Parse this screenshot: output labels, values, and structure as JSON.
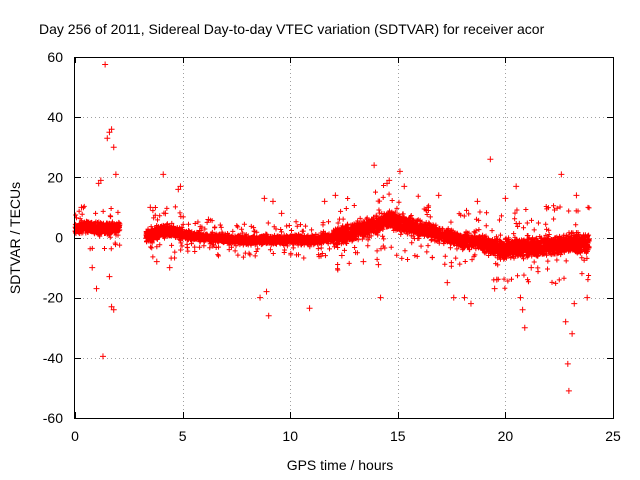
{
  "chart_data": {
    "type": "scatter",
    "title": "Day 256 of 2011, Sidereal Day-to-day VTEC variation (SDTVAR) for receiver acor",
    "xlabel": "GPS time / hours",
    "ylabel": "SDTVAR / TECUs",
    "xlim": [
      0,
      25
    ],
    "ylim": [
      -60,
      60
    ],
    "xticks": [
      0,
      5,
      10,
      15,
      20,
      25
    ],
    "yticks": [
      -60,
      -40,
      -20,
      0,
      20,
      40,
      60
    ],
    "grid": true,
    "marker": "+",
    "color": "#ff0000",
    "trend": [
      [
        0,
        3
      ],
      [
        0.5,
        3.5
      ],
      [
        1,
        3
      ],
      [
        1.5,
        3
      ],
      [
        2,
        3.5
      ],
      [
        3.3,
        0.5
      ],
      [
        4,
        2
      ],
      [
        4.5,
        2
      ],
      [
        5,
        1
      ],
      [
        6,
        0
      ],
      [
        7,
        -0.5
      ],
      [
        8,
        -1
      ],
      [
        9,
        -1
      ],
      [
        10,
        -0.5
      ],
      [
        11,
        -1
      ],
      [
        12,
        0
      ],
      [
        13,
        2
      ],
      [
        14,
        4
      ],
      [
        14.5,
        6
      ],
      [
        15,
        5
      ],
      [
        16,
        3
      ],
      [
        17,
        1
      ],
      [
        18,
        -1
      ],
      [
        19,
        -2
      ],
      [
        20,
        -4
      ],
      [
        21,
        -3
      ],
      [
        22,
        -3
      ],
      [
        23,
        -2
      ],
      [
        23.9,
        -2
      ]
    ],
    "outliers": [
      [
        1.4,
        57.5
      ],
      [
        1.6,
        35
      ],
      [
        1.7,
        36
      ],
      [
        1.5,
        33
      ],
      [
        1.8,
        30
      ],
      [
        1.2,
        19
      ],
      [
        1.1,
        18
      ],
      [
        1.9,
        21
      ],
      [
        1.3,
        -39.5
      ],
      [
        1.7,
        -23
      ],
      [
        1.8,
        -24
      ],
      [
        1.0,
        -17
      ],
      [
        0.8,
        -10
      ],
      [
        1.6,
        -13
      ],
      [
        0.3,
        10
      ],
      [
        4.1,
        21
      ],
      [
        4.8,
        16
      ],
      [
        4.9,
        17
      ],
      [
        3.5,
        10
      ],
      [
        4.2,
        8
      ],
      [
        3.8,
        -8
      ],
      [
        4.4,
        -10
      ],
      [
        6.2,
        6
      ],
      [
        8.6,
        -20
      ],
      [
        8.8,
        13
      ],
      [
        8.9,
        -18
      ],
      [
        9.0,
        -26
      ],
      [
        9.2,
        12
      ],
      [
        9.6,
        8
      ],
      [
        10.9,
        -23.5
      ],
      [
        11.6,
        12
      ],
      [
        12.1,
        14
      ],
      [
        12.4,
        -6
      ],
      [
        13.4,
        -8
      ],
      [
        13.9,
        24
      ],
      [
        14.2,
        -20
      ],
      [
        14.1,
        -9
      ],
      [
        14.6,
        19
      ],
      [
        14.5,
        18
      ],
      [
        15.1,
        22
      ],
      [
        15.3,
        17
      ],
      [
        16.4,
        10
      ],
      [
        16.9,
        14
      ],
      [
        17.3,
        -15
      ],
      [
        17.6,
        -20
      ],
      [
        18.1,
        -20
      ],
      [
        18.4,
        -22
      ],
      [
        18.7,
        12
      ],
      [
        19.3,
        26
      ],
      [
        19.5,
        -17
      ],
      [
        19.6,
        -14
      ],
      [
        20.0,
        13
      ],
      [
        20.5,
        17
      ],
      [
        20.7,
        -20
      ],
      [
        20.8,
        -24
      ],
      [
        20.9,
        -30
      ],
      [
        21.2,
        -10
      ],
      [
        22.6,
        21
      ],
      [
        22.8,
        -28
      ],
      [
        22.9,
        -42
      ],
      [
        22.95,
        -51
      ],
      [
        23.1,
        -32
      ],
      [
        23.3,
        14
      ],
      [
        23.2,
        -22
      ],
      [
        23.8,
        -20
      ]
    ]
  }
}
